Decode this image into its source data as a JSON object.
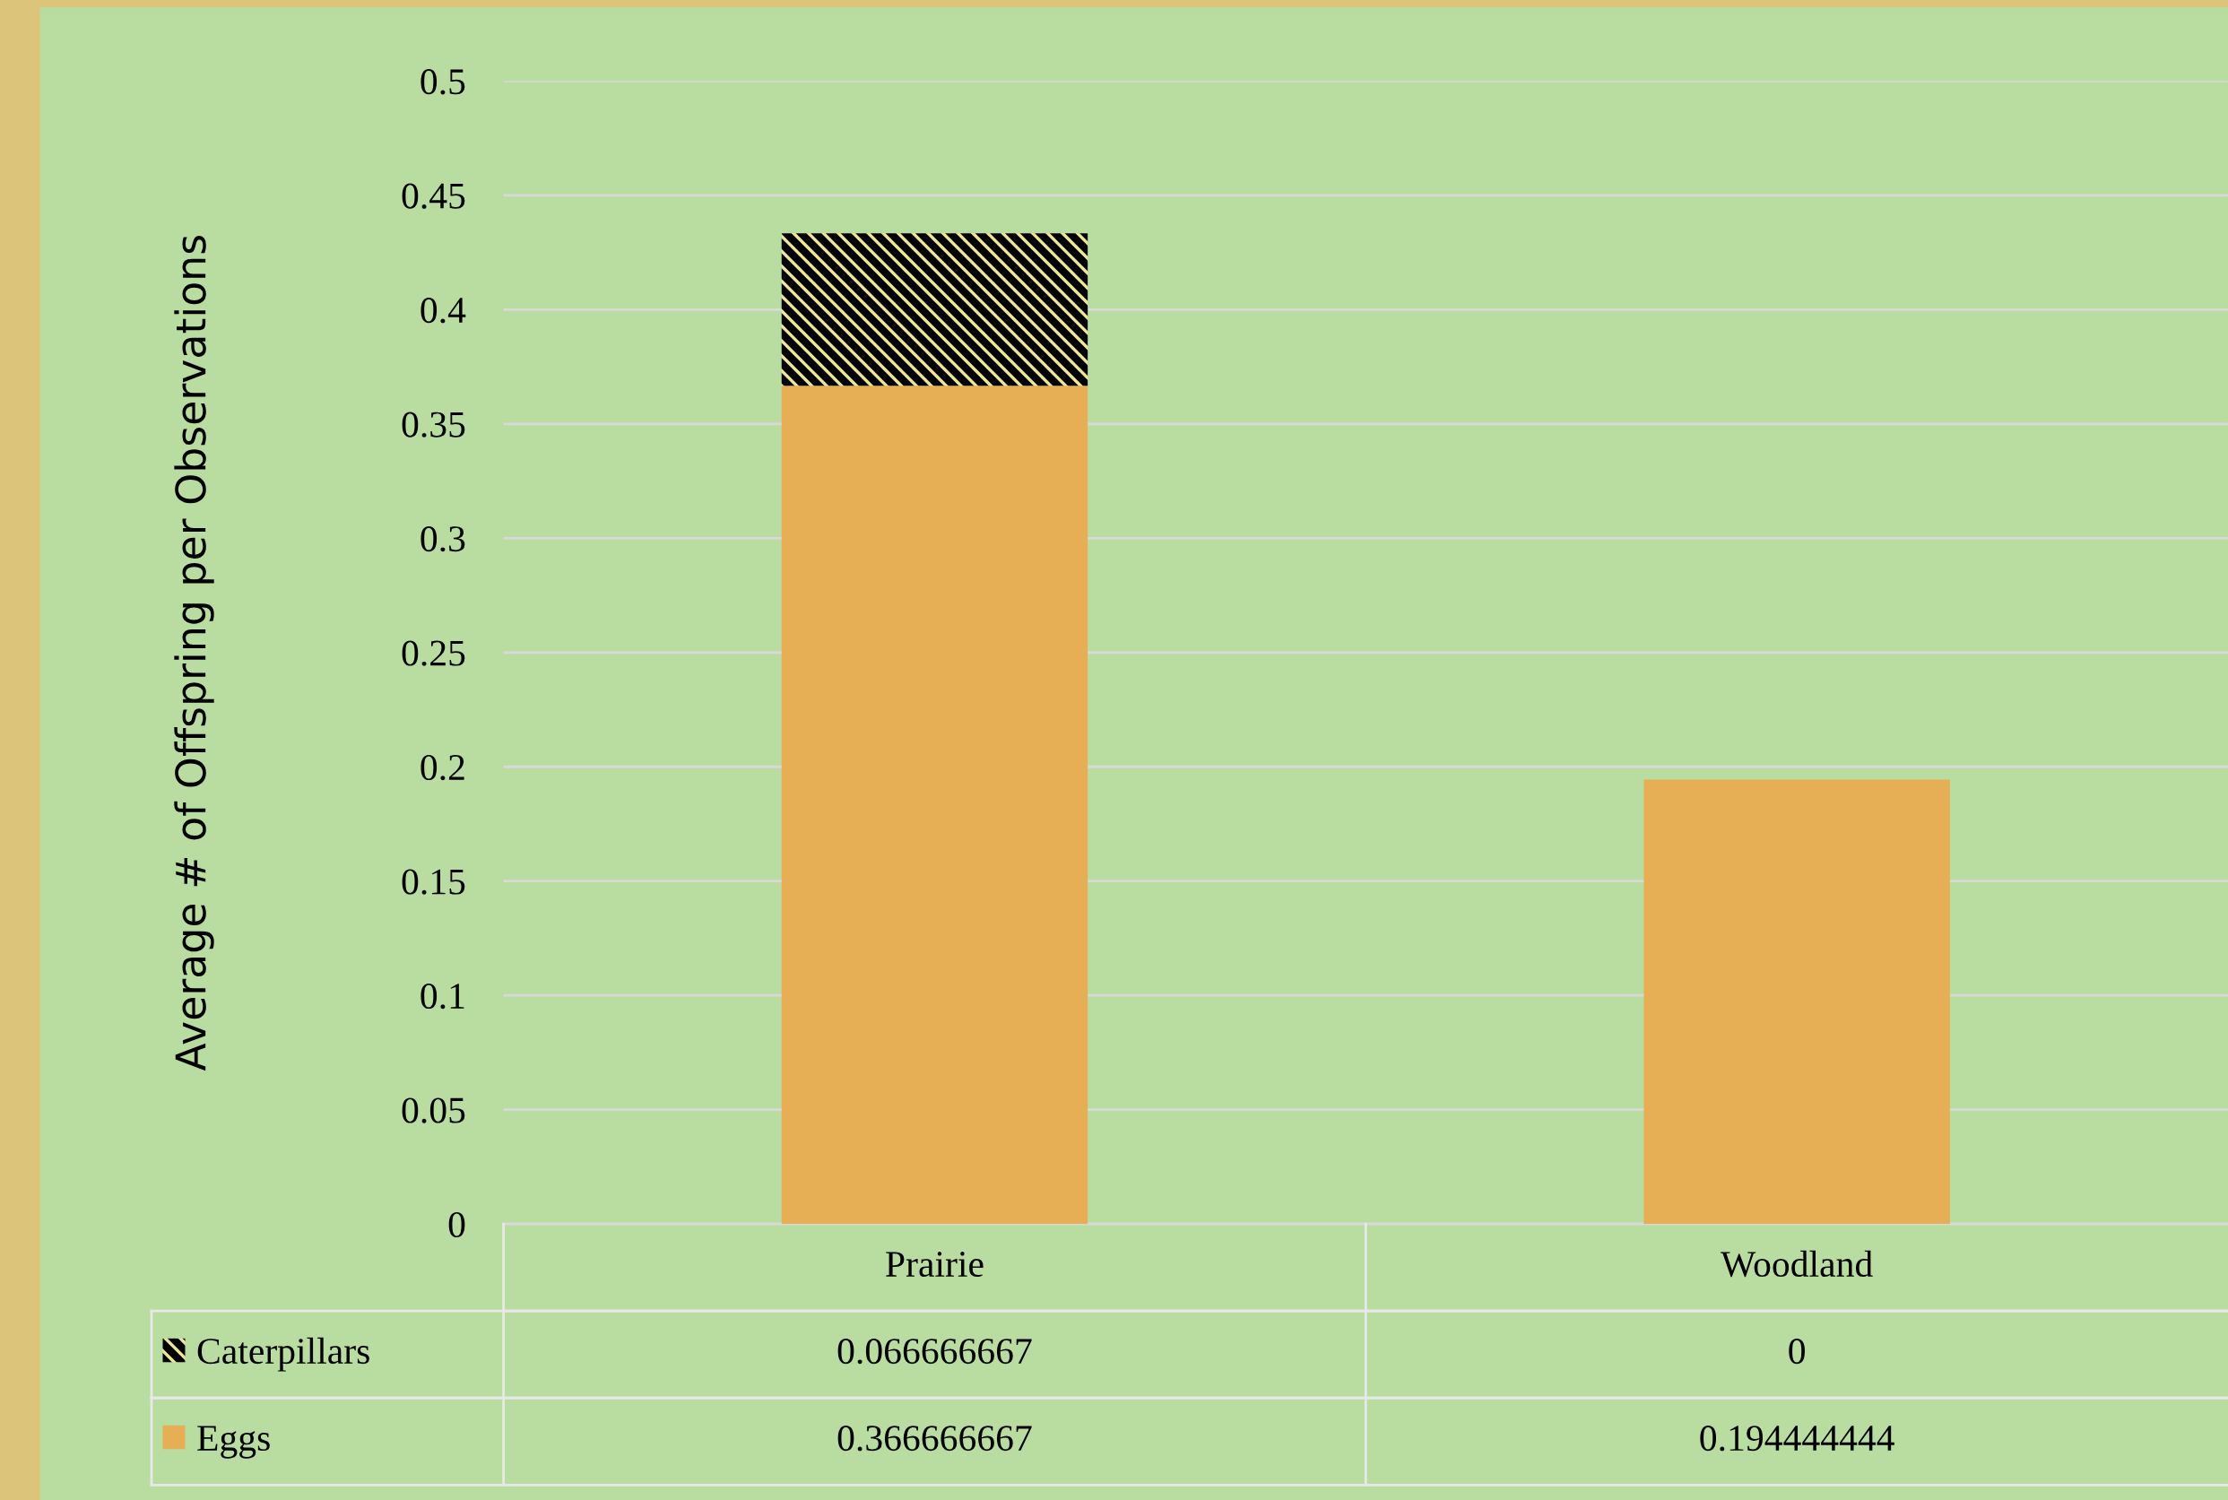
{
  "chart_data": {
    "type": "bar",
    "stacked": true,
    "ylabel": "Average # of Offspring per Observations",
    "categories": [
      "Prairie",
      "Woodland"
    ],
    "series": [
      {
        "name": "Eggs",
        "color": "#e6ae55",
        "values": [
          0.366666667,
          0.194444444
        ]
      },
      {
        "name": "Caterpillars",
        "color": "#ece59a",
        "values": [
          0.066666667,
          0
        ]
      }
    ],
    "ylim": [
      0,
      0.5
    ],
    "yticks": [
      0,
      0.05,
      0.1,
      0.15,
      0.2,
      0.25,
      0.3,
      0.35,
      0.4,
      0.45,
      0.5
    ],
    "grid": "y",
    "data_labels": true,
    "legend": "bottom"
  }
}
